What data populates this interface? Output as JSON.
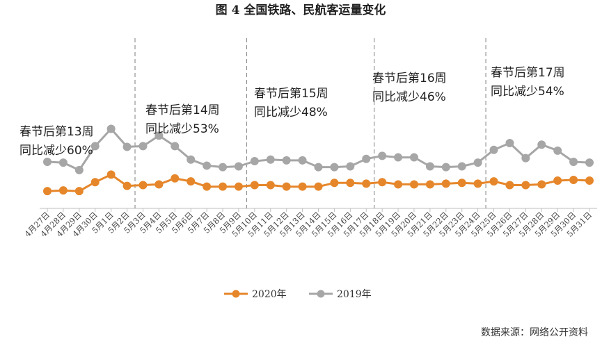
{
  "chart_data": {
    "type": "line",
    "title": "图 4  全国铁路、民航客运量变化",
    "xlabel": "",
    "ylabel": "",
    "grid": false,
    "legend_position": "bottom",
    "categories": [
      "4月27日",
      "4月28日",
      "4月29日",
      "4月30日",
      "5月1日",
      "5月2日",
      "5月3日",
      "5月4日",
      "5月5日",
      "5月6日",
      "5月7日",
      "5月8日",
      "5月9日",
      "5月10日",
      "5月11日",
      "5月12日",
      "5月13日",
      "5月14日",
      "5月15日",
      "5月16日",
      "5月17日",
      "5月18日",
      "5月19日",
      "5月20日",
      "5月21日",
      "5月22日",
      "5月23日",
      "5月24日",
      "5月25日",
      "5月26日",
      "5月27日",
      "5月28日",
      "5月29日",
      "5月30日",
      "5月31日"
    ],
    "ylim": [
      0,
      100
    ],
    "series": [
      {
        "name": "2020年",
        "color": "#E6862A",
        "values": [
          23,
          24,
          23,
          35,
          45,
          30,
          31,
          32,
          40,
          36,
          29,
          29,
          29,
          31,
          31,
          29,
          29,
          29,
          34,
          34,
          33,
          35,
          32,
          32,
          32,
          33,
          34,
          33,
          36,
          31,
          31,
          32,
          37,
          38,
          37
        ]
      },
      {
        "name": "2019年",
        "color": "#A6A6A6",
        "values": [
          62,
          61,
          51,
          83,
          106,
          82,
          83,
          97,
          83,
          65,
          57,
          55,
          56,
          63,
          65,
          64,
          64,
          55,
          55,
          56,
          66,
          70,
          68,
          68,
          56,
          55,
          56,
          61,
          78,
          87,
          67,
          85,
          77,
          62,
          61
        ]
      }
    ],
    "annotations": [
      {
        "line1": "春节后第13周",
        "line2": "同比减少60%"
      },
      {
        "line1": "春节后第14周",
        "line2": "同比减少53%"
      },
      {
        "line1": "春节后第15周",
        "line2": "同比减少48%"
      },
      {
        "line1": "春节后第16周",
        "line2": "同比减少46%"
      },
      {
        "line1": "春节后第17周",
        "line2": "同比减少54%"
      }
    ],
    "source": "数据来源：网络公开资料"
  }
}
